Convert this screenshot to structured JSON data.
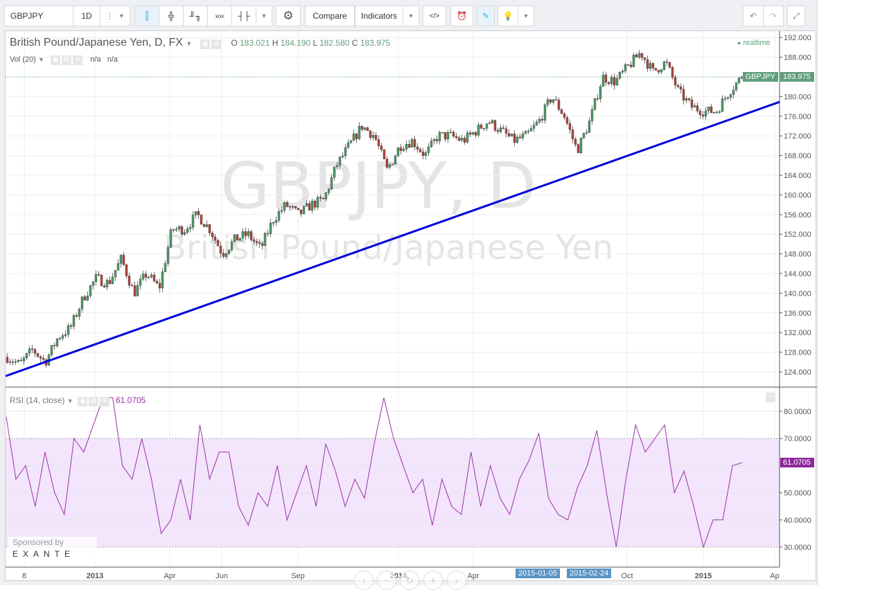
{
  "toolbar": {
    "symbol": "GBPJPY",
    "interval": "1D",
    "compare": "Compare",
    "indicators": "Indicators"
  },
  "legend": {
    "title": "British Pound/Japanese Yen, D, FX",
    "o_label": "O",
    "o": "183.021",
    "h_label": "H",
    "h": "184.190",
    "l_label": "L",
    "l": "182.580",
    "c_label": "C",
    "c": "183.975",
    "vol": "Vol (20)",
    "vol_v1": "n/a",
    "vol_v2": "n/a",
    "realtime": "realtime"
  },
  "watermark": {
    "line1": "GBPJPY, D",
    "line2": "British Pound/Japanese Yen"
  },
  "price_tag": {
    "symbol": "GBPJPY",
    "value": "183.975"
  },
  "rsi": {
    "title": "RSI (14, close)",
    "value": "61.0705",
    "upper": 70,
    "lower": 30
  },
  "sponsor": {
    "label": "Sponsored by",
    "brand": "EXANTE"
  },
  "time_axis": {
    "labels": [
      "8",
      "2013",
      "Apr",
      "Jun",
      "Sep",
      "2014",
      "Apr",
      "Oct",
      "2015",
      "Ap"
    ],
    "marker1": "2015-01-05",
    "marker2": "2015-02-24"
  },
  "colors": {
    "up": "#4e9a6a",
    "down": "#b5433b",
    "trend": "#0000dd",
    "rsi": "#9b30a8",
    "rsi_band": "#f3e5fb",
    "tag": "#5f9e7d",
    "rsi_tag": "#8e2a9b"
  },
  "chart_data": [
    {
      "type": "candlestick",
      "yaxis": {
        "ticks": [
          "192.000",
          "188.000",
          "184.000",
          "180.000",
          "176.000",
          "172.000",
          "168.000",
          "164.000",
          "160.000",
          "156.000",
          "152.000",
          "148.000",
          "144.000",
          "140.000",
          "136.000",
          "132.000",
          "128.000",
          "124.000"
        ],
        "range": [
          124,
          192
        ]
      },
      "close_path": [
        127,
        125.5,
        128.5,
        126,
        131,
        133,
        139,
        143,
        142,
        147,
        140,
        144,
        141,
        153,
        153,
        156,
        153,
        148,
        151,
        152,
        149,
        155,
        158,
        156,
        158,
        159,
        166,
        170,
        174,
        172,
        165,
        170,
        171,
        168,
        172,
        172,
        171,
        173,
        175,
        173,
        171,
        172,
        175,
        180,
        176,
        169,
        175,
        184,
        183,
        186,
        189,
        185,
        187,
        181,
        178,
        177,
        177,
        181,
        183.975
      ],
      "trendline": {
        "start": 123.15,
        "end": 178.9
      }
    },
    {
      "type": "line",
      "name": "RSI (14, close)",
      "yaxis": {
        "ticks": [
          "80.0000",
          "70.0000",
          "61.0705",
          "50.0000",
          "40.0000",
          "30.0000"
        ],
        "range": [
          25,
          85
        ]
      },
      "values": [
        78,
        55,
        60,
        45,
        65,
        50,
        42,
        70,
        65,
        75,
        85,
        85,
        60,
        55,
        70,
        55,
        35,
        40,
        55,
        40,
        75,
        55,
        65,
        65,
        45,
        38,
        50,
        45,
        60,
        40,
        50,
        60,
        45,
        68,
        58,
        45,
        55,
        48,
        68,
        85,
        70,
        60,
        50,
        55,
        38,
        55,
        45,
        42,
        65,
        45,
        60,
        48,
        42,
        55,
        62,
        72,
        48,
        42,
        40,
        52,
        60,
        73,
        50,
        30,
        55,
        75,
        65,
        70,
        75,
        50,
        58,
        45,
        30,
        40,
        40,
        60,
        61.07
      ]
    }
  ]
}
